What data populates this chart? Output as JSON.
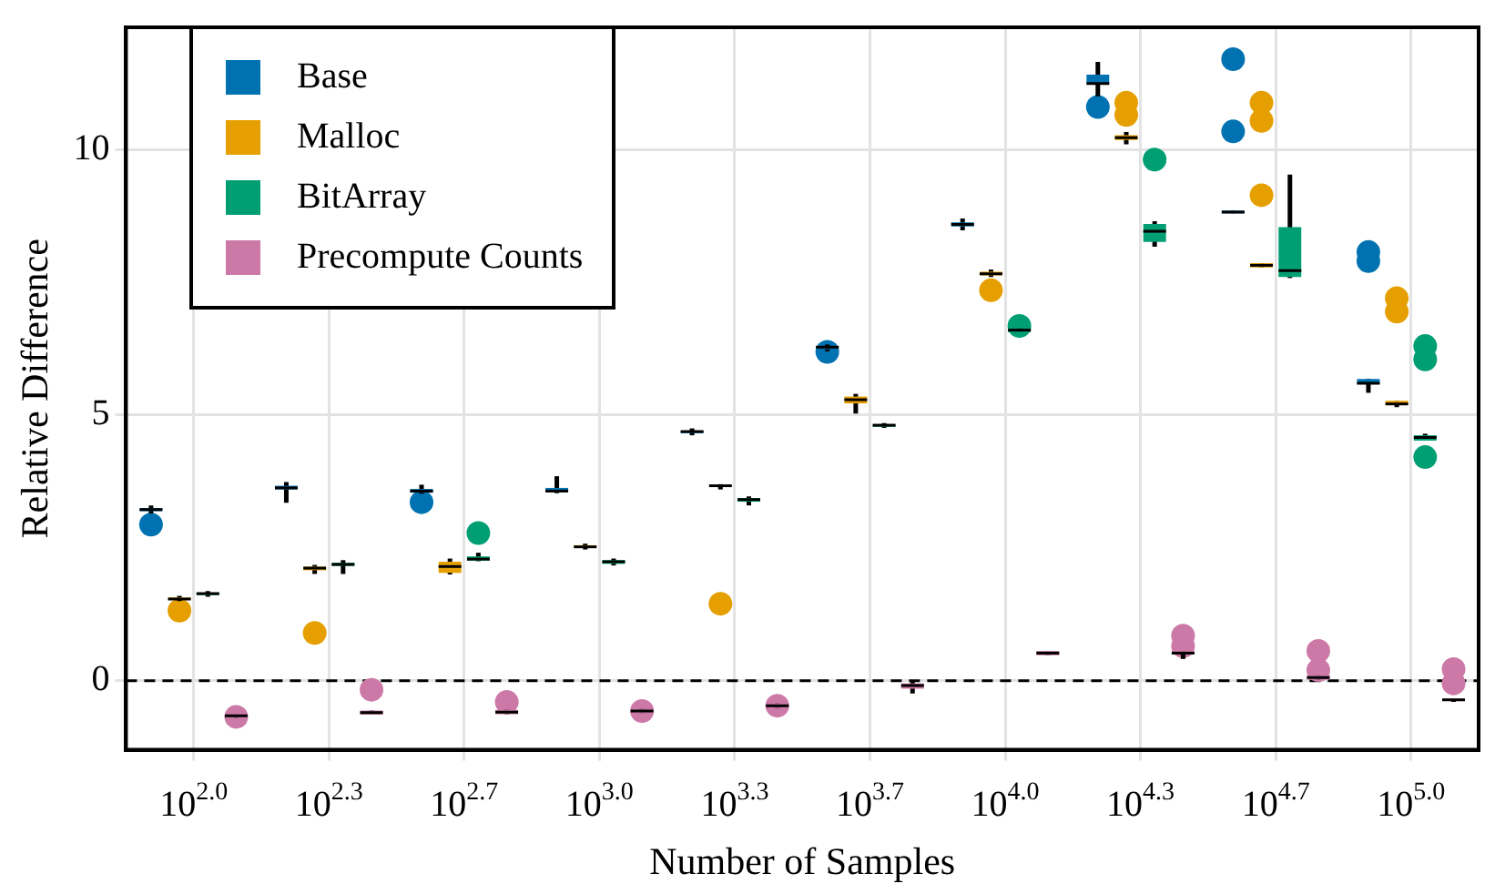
{
  "chart_data": {
    "type": "box",
    "xlabel": "Number of Samples",
    "ylabel": "Relative Difference",
    "categories": [
      "10$^{2.0}$",
      "10$^{2.3}$",
      "10$^{2.7}$",
      "10$^{3.0}$",
      "10$^{3.3}$",
      "10$^{3.7}$",
      "10$^{4.0}$",
      "10$^{4.3}$",
      "10$^{4.7}$",
      "10$^{5.0}$"
    ],
    "ylim": [
      -1.3,
      12.3
    ],
    "yticks": [
      0,
      5,
      10
    ],
    "grid": true,
    "legend": "top left",
    "ref_lines": [
      {
        "axis": "y",
        "value": 0,
        "color": "#000000",
        "line_style": "dashed"
      }
    ],
    "series": [
      {
        "name": "Base",
        "color": "#0072b2",
        "boxes": [
          {
            "low": 3.15,
            "q1": 3.19,
            "median": 3.22,
            "q3": 3.25,
            "high": 3.3,
            "outliers": [
              2.94
            ]
          },
          {
            "low": 3.35,
            "q1": 3.6,
            "median": 3.63,
            "q3": 3.67,
            "high": 3.74
          },
          {
            "low": 3.52,
            "q1": 3.54,
            "median": 3.57,
            "q3": 3.61,
            "high": 3.69,
            "outliers": [
              3.36
            ]
          },
          {
            "low": 3.53,
            "q1": 3.55,
            "median": 3.57,
            "q3": 3.63,
            "high": 3.85
          },
          {
            "low": 4.62,
            "q1": 4.66,
            "median": 4.69,
            "q3": 4.71,
            "high": 4.75
          },
          {
            "low": 6.2,
            "q1": 6.24,
            "median": 6.28,
            "q3": 6.3,
            "high": 6.33,
            "outliers": [
              6.19
            ]
          },
          {
            "low": 8.48,
            "q1": 8.55,
            "median": 8.59,
            "q3": 8.63,
            "high": 8.7
          },
          {
            "low": 11.0,
            "q1": 11.24,
            "median": 11.24,
            "q3": 11.41,
            "high": 11.65,
            "outliers": [
              10.8
            ]
          },
          {
            "low": 8.8,
            "q1": 8.8,
            "median": 8.82,
            "q3": 8.85,
            "high": 8.85,
            "outliers": [
              11.7,
              10.34
            ]
          },
          {
            "low": 5.42,
            "q1": 5.58,
            "median": 5.6,
            "q3": 5.68,
            "high": 5.68,
            "outliers": [
              8.07,
              7.9
            ]
          }
        ]
      },
      {
        "name": "Malloc",
        "color": "#e69f00",
        "boxes": [
          {
            "low": 1.5,
            "q1": 1.52,
            "median": 1.54,
            "q3": 1.57,
            "high": 1.6,
            "outliers": [
              1.32
            ]
          },
          {
            "low": 2.01,
            "q1": 2.08,
            "median": 2.12,
            "q3": 2.15,
            "high": 2.18,
            "outliers": [
              0.9
            ]
          },
          {
            "low": 2.0,
            "q1": 2.03,
            "median": 2.15,
            "q3": 2.24,
            "high": 2.3
          },
          {
            "low": 2.47,
            "q1": 2.5,
            "median": 2.52,
            "q3": 2.55,
            "high": 2.58
          },
          {
            "low": 3.6,
            "q1": 3.65,
            "median": 3.67,
            "q3": 3.69,
            "high": 3.7,
            "outliers": [
              1.45
            ]
          },
          {
            "low": 5.03,
            "q1": 5.22,
            "median": 5.29,
            "q3": 5.35,
            "high": 5.4
          },
          {
            "low": 7.6,
            "q1": 7.63,
            "median": 7.66,
            "q3": 7.7,
            "high": 7.74,
            "outliers": [
              7.35
            ]
          },
          {
            "low": 10.1,
            "q1": 10.18,
            "median": 10.22,
            "q3": 10.27,
            "high": 10.33,
            "outliers": [
              10.88,
              10.65
            ]
          },
          {
            "low": 7.78,
            "q1": 7.78,
            "median": 7.82,
            "q3": 7.86,
            "high": 7.86,
            "outliers": [
              10.88,
              10.54,
              9.14
            ]
          },
          {
            "low": 5.15,
            "q1": 5.19,
            "median": 5.21,
            "q3": 5.27,
            "high": 5.27,
            "outliers": [
              7.2,
              6.95
            ]
          }
        ]
      },
      {
        "name": "BitArray",
        "color": "#009e73",
        "boxes": [
          {
            "low": 1.58,
            "q1": 1.61,
            "median": 1.64,
            "q3": 1.66,
            "high": 1.69
          },
          {
            "low": 2.01,
            "q1": 2.16,
            "median": 2.19,
            "q3": 2.22,
            "high": 2.27
          },
          {
            "low": 2.25,
            "q1": 2.26,
            "median": 2.29,
            "q3": 2.34,
            "high": 2.41,
            "outliers": [
              2.78
            ]
          },
          {
            "low": 2.17,
            "q1": 2.2,
            "median": 2.24,
            "q3": 2.27,
            "high": 2.3
          },
          {
            "low": 3.3,
            "q1": 3.37,
            "median": 3.41,
            "q3": 3.44,
            "high": 3.47
          },
          {
            "low": 4.76,
            "q1": 4.78,
            "median": 4.81,
            "q3": 4.83,
            "high": 4.85
          },
          {
            "low": 6.56,
            "q1": 6.56,
            "median": 6.6,
            "q3": 6.64,
            "high": 6.64,
            "outliers": [
              6.68
            ]
          },
          {
            "low": 8.17,
            "q1": 8.26,
            "median": 8.46,
            "q3": 8.6,
            "high": 8.65,
            "outliers": [
              9.81
            ]
          },
          {
            "low": 7.58,
            "q1": 7.6,
            "median": 7.72,
            "q3": 8.54,
            "high": 9.53
          },
          {
            "low": 4.52,
            "q1": 4.52,
            "median": 4.58,
            "q3": 4.62,
            "high": 4.65,
            "outliers": [
              6.3,
              6.05,
              4.21
            ]
          }
        ]
      },
      {
        "name": "Precompute Counts",
        "color": "#cc79a7",
        "boxes": [
          {
            "low": -0.7,
            "q1": -0.7,
            "median": -0.66,
            "q3": -0.62,
            "high": -0.62,
            "outliers": [
              -0.68
            ]
          },
          {
            "low": -0.64,
            "q1": -0.64,
            "median": -0.6,
            "q3": -0.56,
            "high": -0.56,
            "outliers": [
              -0.17
            ]
          },
          {
            "low": -0.63,
            "q1": -0.63,
            "median": -0.59,
            "q3": -0.55,
            "high": -0.55,
            "outliers": [
              -0.4
            ]
          },
          {
            "low": -0.61,
            "q1": -0.61,
            "median": -0.57,
            "q3": -0.53,
            "high": -0.53,
            "outliers": [
              -0.57
            ]
          },
          {
            "low": -0.51,
            "q1": -0.51,
            "median": -0.47,
            "q3": -0.43,
            "high": -0.43,
            "outliers": [
              -0.47
            ]
          },
          {
            "low": -0.24,
            "q1": -0.15,
            "median": -0.09,
            "q3": -0.05,
            "high": -0.02
          },
          {
            "low": 0.48,
            "q1": 0.48,
            "median": 0.52,
            "q3": 0.56,
            "high": 0.56
          },
          {
            "low": 0.41,
            "q1": 0.5,
            "median": 0.52,
            "q3": 0.56,
            "high": 0.56,
            "outliers": [
              0.85,
              0.65
            ]
          },
          {
            "low": 0.02,
            "q1": 0.02,
            "median": 0.06,
            "q3": 0.1,
            "high": 0.1,
            "outliers": [
              0.56,
              0.2
            ]
          },
          {
            "low": -0.4,
            "q1": -0.38,
            "median": -0.36,
            "q3": -0.33,
            "high": -0.33,
            "outliers": [
              0.22,
              -0.05
            ]
          }
        ]
      }
    ]
  }
}
